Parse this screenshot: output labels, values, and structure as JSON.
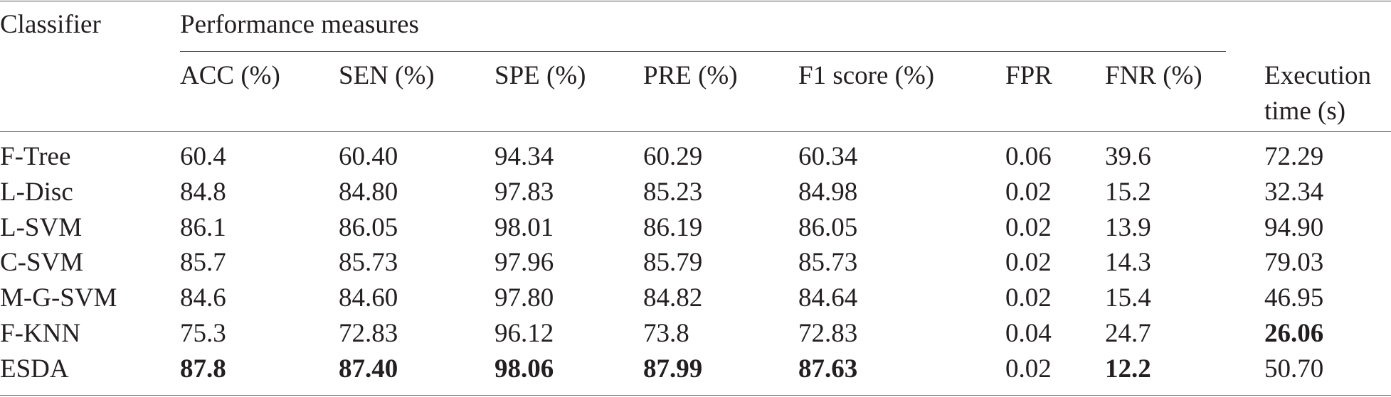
{
  "table": {
    "header": {
      "classifier": "Classifier",
      "group": "Performance measures",
      "columns": [
        "ACC (%)",
        "SEN (%)",
        "SPE (%)",
        "PRE (%)",
        "F1 score (%)",
        "FPR",
        "FNR (%)",
        "Execution time (s)"
      ]
    },
    "rows": [
      [
        "F-Tree",
        "60.4",
        "60.40",
        "94.34",
        "60.29",
        "60.34",
        "0.06",
        "39.6",
        "72.29"
      ],
      [
        "L-Disc",
        "84.8",
        "84.80",
        "97.83",
        "85.23",
        "84.98",
        "0.02",
        "15.2",
        "32.34"
      ],
      [
        "L-SVM",
        "86.1",
        "86.05",
        "98.01",
        "86.19",
        "86.05",
        "0.02",
        "13.9",
        "94.90"
      ],
      [
        "C-SVM",
        "85.7",
        "85.73",
        "97.96",
        "85.79",
        "85.73",
        "0.02",
        "14.3",
        "79.03"
      ],
      [
        "M-G-SVM",
        "84.6",
        "84.60",
        "97.80",
        "84.82",
        "84.64",
        "0.02",
        "15.4",
        "46.95"
      ],
      [
        "F-KNN",
        "75.3",
        "72.83",
        "96.12",
        "73.8",
        "72.83",
        "0.04",
        "24.7",
        "26.06"
      ],
      [
        "ESDA",
        "87.8",
        "87.40",
        "98.06",
        "87.99",
        "87.63",
        "0.02",
        "12.2",
        "50.70"
      ]
    ],
    "bold_cells": [
      [
        5,
        8
      ],
      [
        6,
        1
      ],
      [
        6,
        2
      ],
      [
        6,
        3
      ],
      [
        6,
        4
      ],
      [
        6,
        5
      ],
      [
        6,
        7
      ]
    ]
  }
}
